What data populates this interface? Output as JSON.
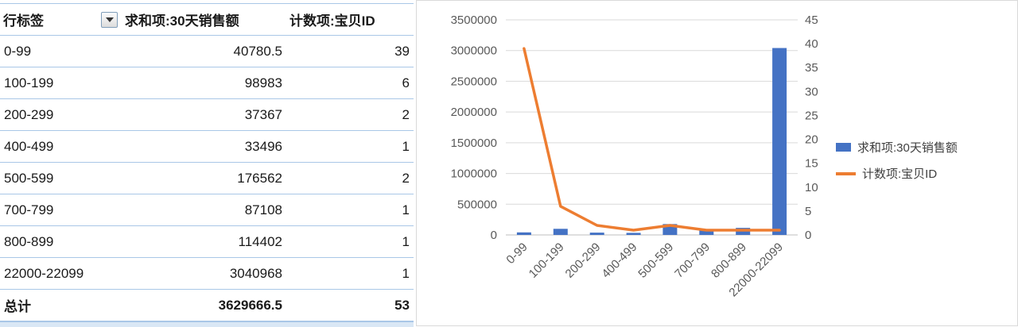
{
  "table": {
    "header": {
      "row_label": "行标签",
      "col_sales": "求和项:30天销售额",
      "col_count": "计数项:宝贝ID"
    },
    "rows": [
      {
        "label": "0-99",
        "sales": "40780.5",
        "count": "39"
      },
      {
        "label": "100-199",
        "sales": "98983",
        "count": "6"
      },
      {
        "label": "200-299",
        "sales": "37367",
        "count": "2"
      },
      {
        "label": "400-499",
        "sales": "33496",
        "count": "1"
      },
      {
        "label": "500-599",
        "sales": "176562",
        "count": "2"
      },
      {
        "label": "700-799",
        "sales": "87108",
        "count": "1"
      },
      {
        "label": "800-899",
        "sales": "114402",
        "count": "1"
      },
      {
        "label": "22000-22099",
        "sales": "3040968",
        "count": "1"
      }
    ],
    "total": {
      "label": "总计",
      "sales": "3629666.5",
      "count": "53"
    }
  },
  "chart_data": {
    "type": "bar",
    "subtype": "combo-bar-line-dual-axis",
    "categories": [
      "0-99",
      "100-199",
      "200-299",
      "400-499",
      "500-599",
      "700-799",
      "800-899",
      "22000-22099"
    ],
    "series": [
      {
        "name": "求和项:30天销售额",
        "type": "bar",
        "axis": "left",
        "color": "#4472C4",
        "values": [
          40780.5,
          98983,
          37367,
          33496,
          176562,
          87108,
          114402,
          3040968
        ]
      },
      {
        "name": "计数项:宝贝ID",
        "type": "line",
        "axis": "right",
        "color": "#ED7D31",
        "values": [
          39,
          6,
          2,
          1,
          2,
          1,
          1,
          1
        ]
      }
    ],
    "left_axis": {
      "min": 0,
      "max": 3500000,
      "step": 500000,
      "ticks": [
        "0",
        "500000",
        "1000000",
        "1500000",
        "2000000",
        "2500000",
        "3000000",
        "3500000"
      ]
    },
    "right_axis": {
      "min": 0,
      "max": 45,
      "step": 5,
      "ticks": [
        "0",
        "5",
        "10",
        "15",
        "20",
        "25",
        "30",
        "35",
        "40",
        "45"
      ]
    },
    "legend_position": "right",
    "grid": true,
    "gridline_color": "#D9D9D9",
    "axis_line_color": "#BFBFBF"
  },
  "colors": {
    "table_border": "#A9C7E7",
    "bar": "#4472C4",
    "line": "#ED7D31"
  }
}
